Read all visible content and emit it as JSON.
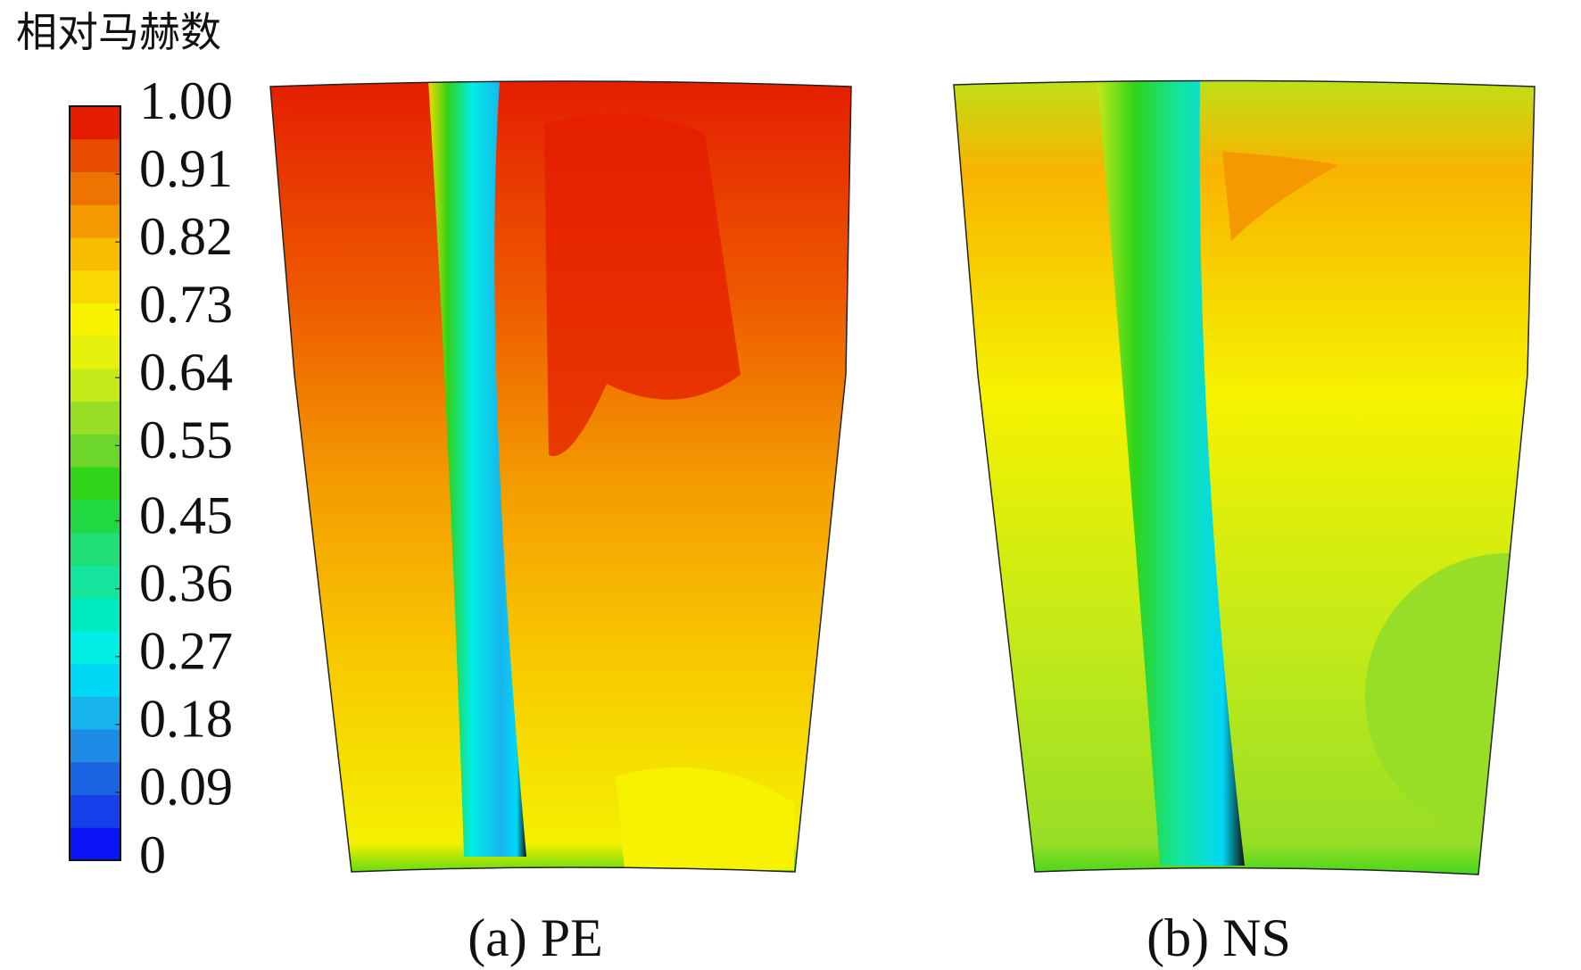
{
  "chart_data": {
    "type": "contour",
    "title": "相对马赫数",
    "zlim": [
      0,
      1
    ],
    "zticks": [
      {
        "value": 1,
        "label": "1.00"
      },
      0.91,
      0.82,
      0.73,
      0.64,
      0.55,
      0.45,
      0.36,
      0.27,
      0.18,
      0.09,
      0
    ],
    "colors": [
      "#0a14f5",
      "#1440ea",
      "#1a64e2",
      "#1e8ce6",
      "#18b4ee",
      "#00d8f6",
      "#00eee6",
      "#00eac0",
      "#14e49c",
      "#1ede74",
      "#22d842",
      "#30d418",
      "#6cd62a",
      "#98de26",
      "#c2ea18",
      "#e6f20c",
      "#f6f200",
      "#f8d800",
      "#f8bc00",
      "#f49a00",
      "#ee7400",
      "#e84c00",
      "#e41c00"
    ],
    "panels": [
      {
        "label": "(a) PE"
      },
      {
        "label": "(b) NS"
      }
    ]
  }
}
